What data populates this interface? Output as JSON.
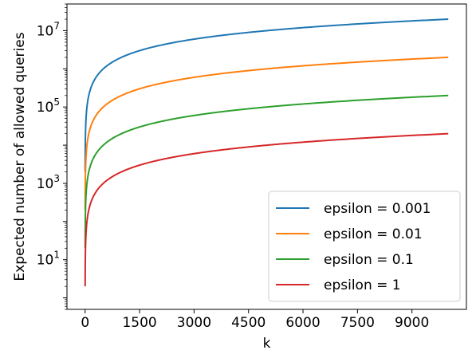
{
  "chart_data": {
    "type": "line",
    "title": "",
    "xlabel": "k",
    "ylabel": "Expected number of allowed queries",
    "yscale": "log",
    "xlim": [
      -500,
      10500
    ],
    "ylim": [
      0.5,
      50000000
    ],
    "x_ticks": [
      0,
      1500,
      3000,
      4500,
      6000,
      7500,
      9000
    ],
    "x_tick_labels": [
      "0",
      "1500",
      "3000",
      "4500",
      "6000",
      "7500",
      "9000"
    ],
    "y_ticks": [
      10,
      1000,
      100000,
      10000000
    ],
    "y_tick_labels": [
      {
        "base": "10",
        "exp": "1"
      },
      {
        "base": "10",
        "exp": "3"
      },
      {
        "base": "10",
        "exp": "5"
      },
      {
        "base": "10",
        "exp": "7"
      }
    ],
    "grid": false,
    "legend": {
      "position": "bottom-right"
    },
    "series": [
      {
        "name": "epsilon = 0.001",
        "color": "#1f77b4",
        "x": [
          1,
          10,
          50,
          100,
          200,
          500,
          1000,
          1500,
          2000,
          3000,
          4000,
          5000,
          6000,
          7000,
          8000,
          9000,
          10000
        ],
        "y": [
          1,
          20000,
          100000,
          200000,
          400000,
          1000000,
          2000000,
          3000000,
          4000000,
          6000000,
          8000000,
          10000000,
          12000000,
          14000000,
          16000000,
          18000000,
          20000000
        ]
      },
      {
        "name": "epsilon = 0.01",
        "color": "#ff7f0e",
        "x": [
          1,
          10,
          50,
          100,
          200,
          500,
          1000,
          1500,
          2000,
          3000,
          4000,
          5000,
          6000,
          7000,
          8000,
          9000,
          10000
        ],
        "y": [
          1,
          2000,
          10000,
          20000,
          40000,
          100000,
          200000,
          300000,
          400000,
          600000,
          800000,
          1000000,
          1200000,
          1400000,
          1600000,
          1800000,
          2000000
        ]
      },
      {
        "name": "epsilon = 0.1",
        "color": "#2ca02c",
        "x": [
          1,
          10,
          50,
          100,
          200,
          500,
          1000,
          1500,
          2000,
          3000,
          4000,
          5000,
          6000,
          7000,
          8000,
          9000,
          10000
        ],
        "y": [
          1,
          200,
          1000,
          2000,
          4000,
          10000,
          20000,
          30000,
          40000,
          60000,
          80000,
          100000,
          120000,
          140000,
          160000,
          180000,
          200000
        ]
      },
      {
        "name": "epsilon = 1",
        "color": "#d62728",
        "x": [
          1,
          10,
          50,
          100,
          200,
          500,
          1000,
          1500,
          2000,
          3000,
          4000,
          5000,
          6000,
          7000,
          8000,
          9000,
          10000
        ],
        "y": [
          1,
          20,
          100,
          200,
          400,
          1000,
          2000,
          3000,
          4000,
          6000,
          8000,
          10000,
          12000,
          14000,
          16000,
          18000,
          20000
        ]
      }
    ]
  }
}
